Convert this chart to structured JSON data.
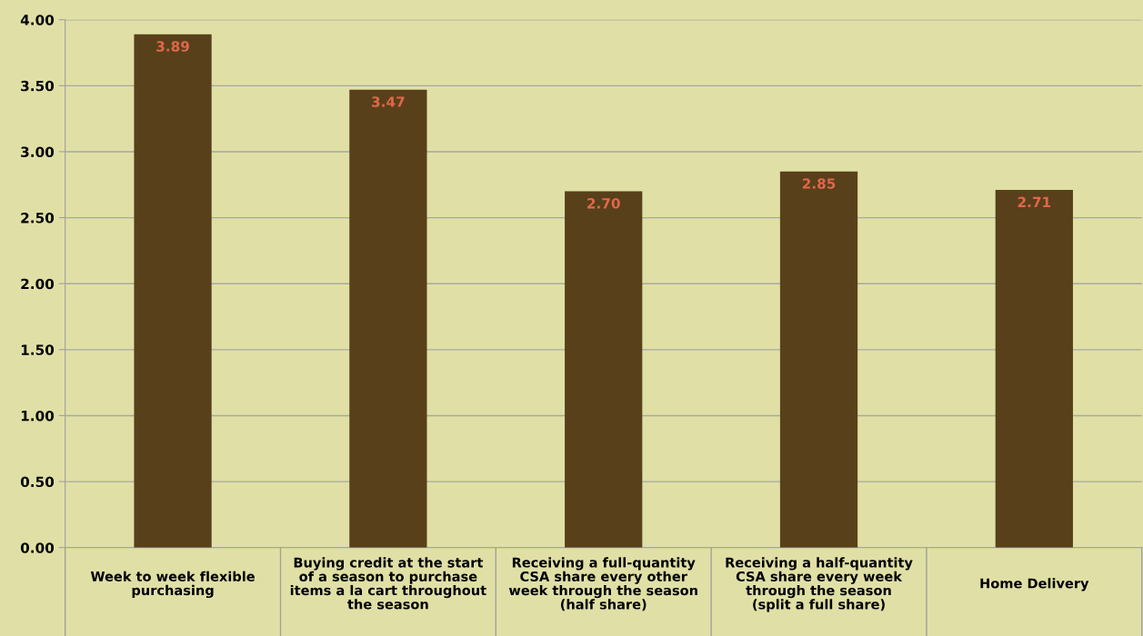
{
  "chart_data": {
    "type": "bar",
    "categories": [
      "Week to week flexible\npurchasing",
      "Buying credit at the start\nof a season to purchase\nitems a la cart throughout\nthe season",
      "Receiving a full-quantity\nCSA share every other\nweek through the season\n(half share)",
      "Receiving a half-quantity\nCSA share every week\nthrough the season\n(split a full share)",
      "Home Delivery"
    ],
    "values": [
      3.89,
      3.47,
      2.7,
      2.85,
      2.71
    ],
    "color": "#58401a",
    "value_labels": [
      "3.89",
      "3.47",
      "2.70",
      "2.85",
      "2.71"
    ],
    "ylim": [
      0,
      4
    ],
    "yticks": [
      {
        "value": 0,
        "label": "0.00"
      },
      {
        "value": 0.5,
        "label": "0.50"
      },
      {
        "value": 1,
        "label": "1.00"
      },
      {
        "value": 1.5,
        "label": "1.50"
      },
      {
        "value": 2,
        "label": "2.00"
      },
      {
        "value": 2.5,
        "label": "2.50"
      },
      {
        "value": 3,
        "label": "3.00"
      },
      {
        "value": 3.5,
        "label": "3.50"
      },
      {
        "value": 4,
        "label": "4.00"
      }
    ],
    "grid": "y",
    "legend": false
  }
}
